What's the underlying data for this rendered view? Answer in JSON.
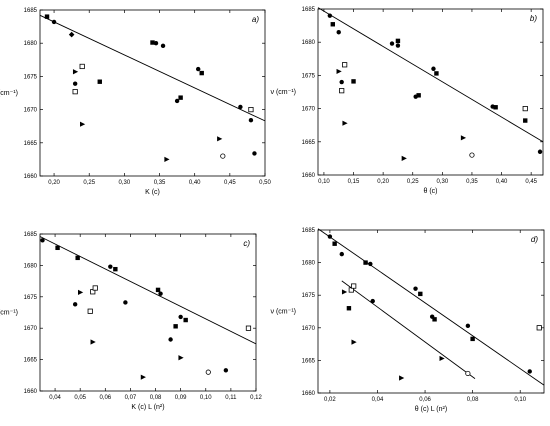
{
  "chart_data": [
    {
      "type": "scatter",
      "panel_label": "a)",
      "xlabel": "K (c)",
      "ylabel": "ν (cm⁻¹)",
      "xlim": [
        0.18,
        0.5
      ],
      "ylim": [
        1660,
        1685
      ],
      "xticks": [
        0.2,
        0.25,
        0.3,
        0.35,
        0.4,
        0.45,
        0.5
      ],
      "xtick_labels": [
        "0,20",
        "0,25",
        "0,30",
        "0,35",
        "0,40",
        "0,45",
        "0,50"
      ],
      "yticks": [
        1660,
        1665,
        1670,
        1675,
        1680,
        1685
      ],
      "ytick_labels": [
        "1660",
        "1665",
        "1670",
        "1675",
        "1680",
        "1685"
      ],
      "grid": false,
      "series": [
        {
          "marker": "circle",
          "points": [
            [
              0.2,
              1683.2
            ],
            [
              0.23,
              1673.9
            ],
            [
              0.345,
              1680.0
            ],
            [
              0.355,
              1679.6
            ],
            [
              0.375,
              1671.3
            ],
            [
              0.405,
              1676.1
            ],
            [
              0.465,
              1670.4
            ],
            [
              0.48,
              1668.4
            ],
            [
              0.485,
              1663.4
            ]
          ]
        },
        {
          "marker": "square",
          "points": [
            [
              0.19,
              1684.0
            ],
            [
              0.23,
              1672.7
            ],
            [
              0.265,
              1674.2
            ],
            [
              0.34,
              1680.1
            ],
            [
              0.38,
              1671.8
            ],
            [
              0.41,
              1675.5
            ]
          ]
        },
        {
          "marker": "diamond",
          "points": [
            [
              0.225,
              1681.3
            ]
          ]
        },
        {
          "marker": "triangle",
          "points": [
            [
              0.23,
              1675.7
            ],
            [
              0.24,
              1667.8
            ],
            [
              0.36,
              1662.5
            ],
            [
              0.435,
              1665.6
            ]
          ]
        },
        {
          "marker": "open-square",
          "points": [
            [
              0.24,
              1676.5
            ],
            [
              0.23,
              1672.7
            ],
            [
              0.48,
              1670.0
            ]
          ]
        },
        {
          "marker": "open-circle",
          "points": [
            [
              0.44,
              1663.0
            ]
          ]
        }
      ],
      "fit_lines": [
        {
          "x": [
            0.18,
            0.5
          ],
          "y": [
            1684.2,
            1668.3
          ]
        }
      ]
    },
    {
      "type": "scatter",
      "panel_label": "b)",
      "xlabel": "θ (c)",
      "ylabel": "ν (cm⁻¹)",
      "xlim": [
        0.09,
        0.47
      ],
      "ylim": [
        1660,
        1685
      ],
      "xticks": [
        0.1,
        0.15,
        0.2,
        0.25,
        0.3,
        0.35,
        0.4,
        0.45
      ],
      "xtick_labels": [
        "0,10",
        "0,15",
        "0,20",
        "0,25",
        "0,30",
        "0,35",
        "0,40",
        "0,45"
      ],
      "yticks": [
        1660,
        1665,
        1670,
        1675,
        1680,
        1685
      ],
      "ytick_labels": [
        "1660",
        "1665",
        "1670",
        "1675",
        "1680",
        "1685"
      ],
      "grid": false,
      "series": [
        {
          "marker": "circle",
          "points": [
            [
              0.11,
              1684.0
            ],
            [
              0.125,
              1681.5
            ],
            [
              0.13,
              1674.0
            ],
            [
              0.215,
              1679.8
            ],
            [
              0.225,
              1679.5
            ],
            [
              0.255,
              1671.8
            ],
            [
              0.285,
              1676.0
            ],
            [
              0.385,
              1670.3
            ],
            [
              0.465,
              1663.5
            ]
          ]
        },
        {
          "marker": "square",
          "points": [
            [
              0.115,
              1682.7
            ],
            [
              0.15,
              1674.1
            ],
            [
              0.225,
              1680.2
            ],
            [
              0.26,
              1672.0
            ],
            [
              0.29,
              1675.3
            ],
            [
              0.39,
              1670.2
            ],
            [
              0.44,
              1668.2
            ]
          ]
        },
        {
          "marker": "triangle",
          "points": [
            [
              0.125,
              1675.6
            ],
            [
              0.135,
              1667.8
            ],
            [
              0.235,
              1662.5
            ],
            [
              0.335,
              1665.6
            ]
          ]
        },
        {
          "marker": "open-square",
          "points": [
            [
              0.135,
              1676.6
            ],
            [
              0.13,
              1672.7
            ],
            [
              0.44,
              1670.0
            ]
          ]
        },
        {
          "marker": "open-circle",
          "points": [
            [
              0.35,
              1663.0
            ]
          ]
        }
      ],
      "fit_lines": [
        {
          "x": [
            0.09,
            0.47
          ],
          "y": [
            1685.2,
            1665.0
          ]
        }
      ]
    },
    {
      "type": "scatter",
      "panel_label": "c)",
      "xlabel": "K (c) L (n²)",
      "ylabel": "ν (cm⁻¹)",
      "xlim": [
        0.034,
        0.12
      ],
      "ylim": [
        1660,
        1685
      ],
      "xticks": [
        0.04,
        0.05,
        0.06,
        0.07,
        0.08,
        0.09,
        0.1,
        0.11,
        0.12
      ],
      "xtick_labels": [
        "0,04",
        "0,05",
        "0,06",
        "0,07",
        "0,08",
        "0,09",
        "0,10",
        "0,11",
        "0,12"
      ],
      "yticks": [
        1660,
        1665,
        1670,
        1675,
        1680,
        1685
      ],
      "ytick_labels": [
        "1660",
        "1665",
        "1670",
        "1675",
        "1680",
        "1685"
      ],
      "grid": false,
      "series": [
        {
          "marker": "circle",
          "points": [
            [
              0.035,
              1684.0
            ],
            [
              0.048,
              1673.8
            ],
            [
              0.062,
              1679.8
            ],
            [
              0.068,
              1674.1
            ],
            [
              0.082,
              1675.5
            ],
            [
              0.086,
              1668.2
            ],
            [
              0.09,
              1671.8
            ],
            [
              0.108,
              1663.3
            ]
          ]
        },
        {
          "marker": "square",
          "points": [
            [
              0.041,
              1682.8
            ],
            [
              0.049,
              1681.2
            ],
            [
              0.064,
              1679.4
            ],
            [
              0.081,
              1676.1
            ],
            [
              0.088,
              1670.3
            ],
            [
              0.092,
              1671.3
            ]
          ]
        },
        {
          "marker": "triangle",
          "points": [
            [
              0.05,
              1675.7
            ],
            [
              0.055,
              1667.8
            ],
            [
              0.075,
              1662.2
            ],
            [
              0.09,
              1665.3
            ]
          ]
        },
        {
          "marker": "open-square",
          "points": [
            [
              0.054,
              1672.7
            ],
            [
              0.055,
              1675.8
            ],
            [
              0.056,
              1676.4
            ],
            [
              0.117,
              1670.0
            ]
          ]
        },
        {
          "marker": "open-circle",
          "points": [
            [
              0.101,
              1663.0
            ]
          ]
        }
      ],
      "fit_lines": [
        {
          "x": [
            0.034,
            0.12
          ],
          "y": [
            1684.6,
            1667.5
          ]
        }
      ]
    },
    {
      "type": "scatter",
      "panel_label": "d)",
      "xlabel": "θ (c) L (n²)",
      "ylabel": "ν (cm⁻¹)",
      "xlim": [
        0.015,
        0.11
      ],
      "ylim": [
        1660,
        1685
      ],
      "xticks": [
        0.02,
        0.04,
        0.06,
        0.08,
        0.1
      ],
      "xtick_labels": [
        "0,02",
        "0,04",
        "0,06",
        "0,08",
        "0,10"
      ],
      "yticks": [
        1660,
        1665,
        1670,
        1675,
        1680,
        1685
      ],
      "ytick_labels": [
        "1660",
        "1665",
        "1670",
        "1675",
        "1680",
        "1685"
      ],
      "grid": false,
      "series": [
        {
          "marker": "circle",
          "points": [
            [
              0.02,
              1684.0
            ],
            [
              0.025,
              1681.3
            ],
            [
              0.037,
              1679.8
            ],
            [
              0.038,
              1674.1
            ],
            [
              0.056,
              1676.0
            ],
            [
              0.063,
              1671.7
            ],
            [
              0.078,
              1670.3
            ],
            [
              0.104,
              1663.3
            ]
          ]
        },
        {
          "marker": "square",
          "points": [
            [
              0.022,
              1682.9
            ],
            [
              0.035,
              1680.0
            ],
            [
              0.028,
              1673.0
            ],
            [
              0.058,
              1675.2
            ],
            [
              0.064,
              1671.3
            ],
            [
              0.08,
              1668.3
            ]
          ]
        },
        {
          "marker": "triangle",
          "points": [
            [
              0.026,
              1675.5
            ],
            [
              0.03,
              1667.8
            ],
            [
              0.05,
              1662.3
            ],
            [
              0.067,
              1665.3
            ]
          ]
        },
        {
          "marker": "open-square",
          "points": [
            [
              0.029,
              1675.8
            ],
            [
              0.03,
              1676.4
            ],
            [
              0.108,
              1670.0
            ]
          ]
        },
        {
          "marker": "open-circle",
          "points": [
            [
              0.078,
              1663.0
            ]
          ]
        }
      ],
      "fit_lines": [
        {
          "x": [
            0.015,
            0.11
          ],
          "y": [
            1685.2,
            1661.2
          ]
        },
        {
          "x": [
            0.025,
            0.081
          ],
          "y": [
            1677.2,
            1662.2
          ]
        }
      ]
    }
  ]
}
